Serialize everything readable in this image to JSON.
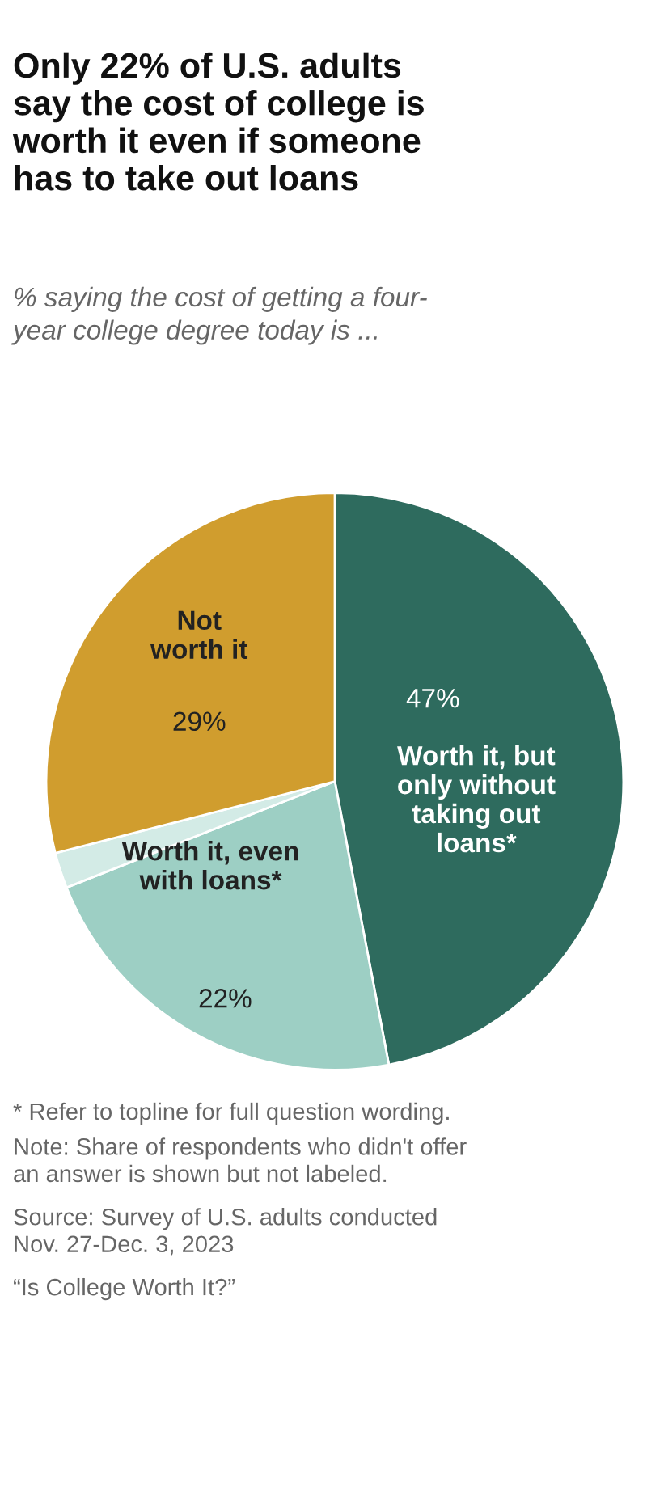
{
  "chart_data": {
    "type": "pie",
    "title": "Only 22% of U.S. adults\nsay the cost of college is\nworth it even if someone\nhas to take out loans",
    "subtitle": "% saying the cost of getting a four-\nyear college degree today is ...",
    "categories": [
      "Worth it, but\nonly without\ntaking out\nloans*",
      "Worth it, even\nwith loans*",
      null,
      "Not\nworth it"
    ],
    "values": [
      47,
      22,
      2,
      29
    ],
    "value_labels": [
      "47%",
      "22%",
      null,
      "29%"
    ],
    "colors": [
      "#2e6b5e",
      "#9dcfc4",
      "#d3ebe6",
      "#d09d2e"
    ],
    "annotations": [
      "* Refer to topline for full question wording.",
      "Note: Share of respondents who didn't offer\nan answer is shown but not labeled.",
      "Source: Survey of U.S. adults conducted\nNov. 27-Dec. 3, 2023",
      "“Is College Worth It?”"
    ]
  }
}
